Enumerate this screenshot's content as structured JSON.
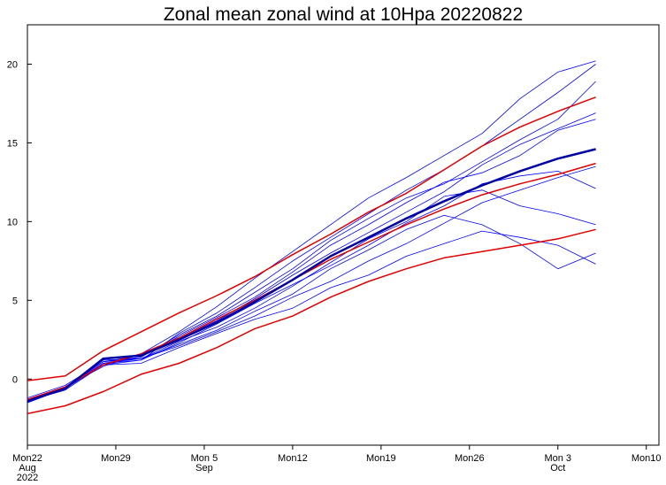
{
  "chart_data": {
    "type": "line",
    "title": "Zonal mean zonal wind at 10Hpa 20220822",
    "x": [
      "2022-08-22",
      "2022-08-25",
      "2022-08-28",
      "2022-08-31",
      "2022-09-03",
      "2022-09-06",
      "2022-09-09",
      "2022-09-12",
      "2022-09-15",
      "2022-09-18",
      "2022-09-21",
      "2022-09-24",
      "2022-09-27",
      "2022-09-30",
      "2022-10-03",
      "2022-10-06"
    ],
    "xlim": [
      "2022-08-22",
      "2022-10-11"
    ],
    "xticks": [
      {
        "value": "2022-08-22",
        "label": [
          "Mon22",
          "Aug",
          "2022"
        ]
      },
      {
        "value": "2022-08-29",
        "label": [
          "Mon29"
        ]
      },
      {
        "value": "2022-09-05",
        "label": [
          "Mon 5",
          "Sep"
        ]
      },
      {
        "value": "2022-09-12",
        "label": [
          "Mon12"
        ]
      },
      {
        "value": "2022-09-19",
        "label": [
          "Mon19"
        ]
      },
      {
        "value": "2022-09-26",
        "label": [
          "Mon26"
        ]
      },
      {
        "value": "2022-10-03",
        "label": [
          "Mon 3",
          "Oct"
        ]
      },
      {
        "value": "2022-10-10",
        "label": [
          "Mon10"
        ]
      }
    ],
    "ylim": [
      -4.2,
      22.5
    ],
    "yticks": [
      0,
      5,
      10,
      15,
      20
    ],
    "series": [
      {
        "color": "#0000ff",
        "linewidth": 0.8,
        "values": [
          -1.3,
          -0.5,
          1.0,
          1.2,
          2.9,
          4.2,
          5.8,
          7.5,
          9.0,
          10.5,
          12.0,
          13.3,
          14.8,
          16.5,
          18.2,
          20.0
        ]
      },
      {
        "color": "#0000ff",
        "linewidth": 0.8,
        "values": [
          -1.4,
          -0.7,
          0.9,
          1.0,
          2.0,
          2.9,
          3.8,
          4.5,
          5.8,
          6.6,
          7.8,
          8.6,
          9.4,
          9.0,
          8.5,
          7.3
        ]
      },
      {
        "color": "#0000ff",
        "linewidth": 0.8,
        "values": [
          -1.2,
          -0.4,
          1.1,
          1.4,
          2.7,
          3.9,
          5.2,
          6.8,
          8.5,
          9.8,
          11.2,
          12.5,
          13.1,
          14.2,
          15.8,
          16.5
        ]
      },
      {
        "color": "#0000ff",
        "linewidth": 0.8,
        "values": [
          -1.5,
          -0.6,
          1.2,
          1.3,
          2.2,
          3.1,
          4.3,
          5.4,
          7.0,
          8.2,
          9.5,
          10.4,
          9.8,
          8.6,
          7.0,
          8.0
        ]
      },
      {
        "color": "#0000ff",
        "linewidth": 0.8,
        "values": [
          -1.3,
          -0.5,
          0.8,
          1.6,
          3.0,
          4.6,
          6.4,
          8.1,
          9.8,
          11.5,
          12.8,
          14.2,
          15.6,
          17.8,
          19.5,
          20.2
        ]
      },
      {
        "color": "#0000ff",
        "linewidth": 0.8,
        "values": [
          -1.4,
          -0.6,
          1.0,
          1.3,
          2.4,
          3.3,
          4.5,
          5.9,
          7.4,
          8.9,
          10.0,
          11.6,
          12.0,
          11.0,
          10.5,
          9.8
        ]
      },
      {
        "color": "#0000ff",
        "linewidth": 0.8,
        "values": [
          -1.3,
          -0.5,
          1.1,
          1.5,
          2.6,
          3.7,
          5.1,
          6.6,
          8.0,
          9.3,
          10.6,
          11.9,
          13.6,
          14.9,
          15.9,
          16.9
        ]
      },
      {
        "color": "#0000ff",
        "linewidth": 0.8,
        "values": [
          -1.4,
          -0.6,
          0.9,
          1.2,
          2.3,
          3.5,
          4.8,
          6.0,
          7.2,
          8.5,
          9.9,
          11.0,
          12.4,
          12.9,
          13.2,
          12.1
        ]
      },
      {
        "color": "#0000ff",
        "linewidth": 0.8,
        "values": [
          -1.5,
          -0.6,
          1.0,
          1.4,
          2.8,
          4.0,
          5.5,
          7.0,
          8.8,
          10.2,
          11.5,
          12.4,
          13.8,
          15.2,
          16.5,
          18.9
        ]
      },
      {
        "color": "#0000ff",
        "linewidth": 0.8,
        "values": [
          -1.3,
          -0.5,
          1.1,
          1.3,
          2.1,
          3.0,
          4.0,
          5.2,
          6.2,
          7.5,
          8.6,
          9.9,
          11.2,
          12.0,
          12.8,
          13.5
        ]
      },
      {
        "color": "#e00000",
        "linewidth": 1.5,
        "values": [
          -0.1,
          0.2,
          1.8,
          3.0,
          4.2,
          5.3,
          6.5,
          7.9,
          9.2,
          10.6,
          11.8,
          13.3,
          14.8,
          16.0,
          17.0,
          17.9
        ]
      },
      {
        "color": "#e00000",
        "linewidth": 1.5,
        "values": [
          -2.2,
          -1.7,
          -0.8,
          0.3,
          1.0,
          2.0,
          3.2,
          4.0,
          5.2,
          6.2,
          7.0,
          7.7,
          8.1,
          8.5,
          8.9,
          9.5
        ]
      },
      {
        "color": "#e00000",
        "linewidth": 1.5,
        "values": [
          -1.3,
          -0.5,
          0.9,
          1.6,
          2.6,
          3.8,
          5.0,
          6.3,
          7.6,
          8.7,
          9.8,
          10.8,
          11.7,
          12.4,
          13.0,
          13.7
        ]
      },
      {
        "color": "#0000a0",
        "linewidth": 2.5,
        "values": [
          -1.4,
          -0.6,
          1.3,
          1.5,
          2.5,
          3.6,
          4.9,
          6.3,
          7.8,
          9.0,
          10.2,
          11.3,
          12.3,
          13.2,
          14.0,
          14.6
        ]
      }
    ]
  }
}
